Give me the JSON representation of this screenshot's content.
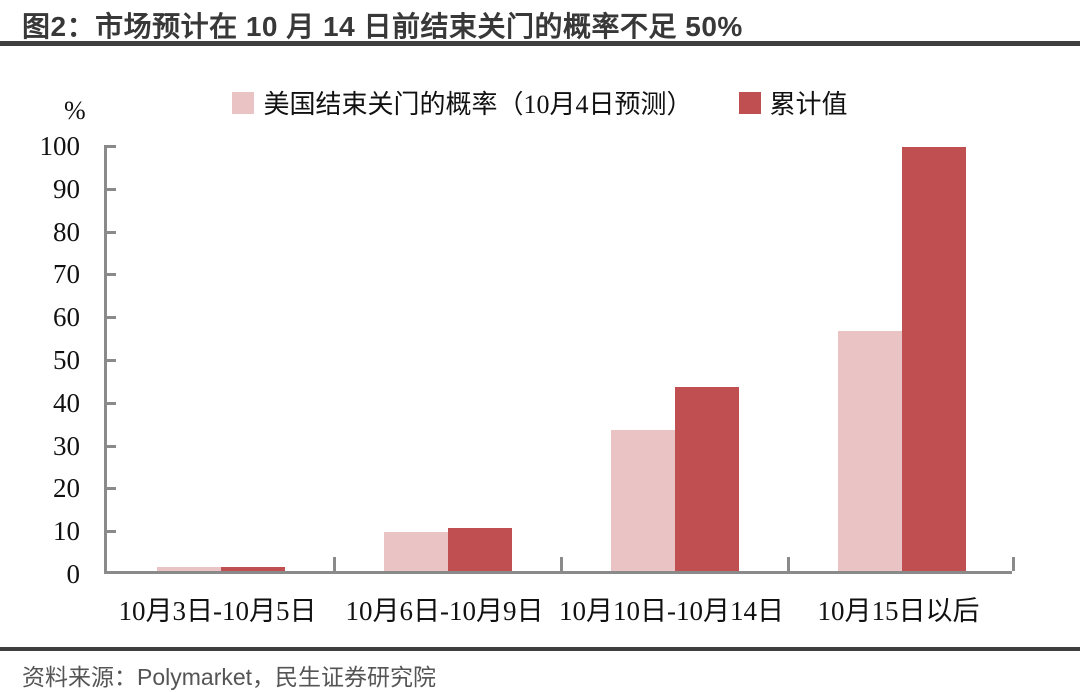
{
  "page": {
    "title": "图2：市场预计在 10 月 14 日前结束关门的概率不足 50%"
  },
  "footer": {
    "source": "资料来源：Polymarket，民生证券研究院"
  },
  "chart_data": {
    "type": "bar",
    "title": "图2：市场预计在 10 月 14 日前结束关门的概率不足 50%",
    "unit_label": "%",
    "categories": [
      "10月3日-10月5日",
      "10月6日-10月9日",
      "10月10日-10月14日",
      "10月15日以后"
    ],
    "series": [
      {
        "name": "美国结束关门的概率（10月4日预测）",
        "color": "#eac3c5",
        "values": [
          1,
          9,
          33,
          56
        ]
      },
      {
        "name": "累计值",
        "color": "#bf4f50",
        "values": [
          1,
          10,
          43,
          99
        ]
      }
    ],
    "xlabel": "",
    "ylabel": "%",
    "ylim": [
      0,
      100
    ],
    "yticks": [
      0,
      10,
      20,
      30,
      40,
      50,
      60,
      70,
      80,
      90,
      100
    ],
    "legend_position": "top",
    "grid": false
  },
  "colors": {
    "series_light": "#eac3c5",
    "series_dark": "#bf4f50",
    "axis": "#8a8a8a",
    "title_text": "#383838",
    "rule": "#3f3f3f",
    "source_text": "#555555"
  }
}
